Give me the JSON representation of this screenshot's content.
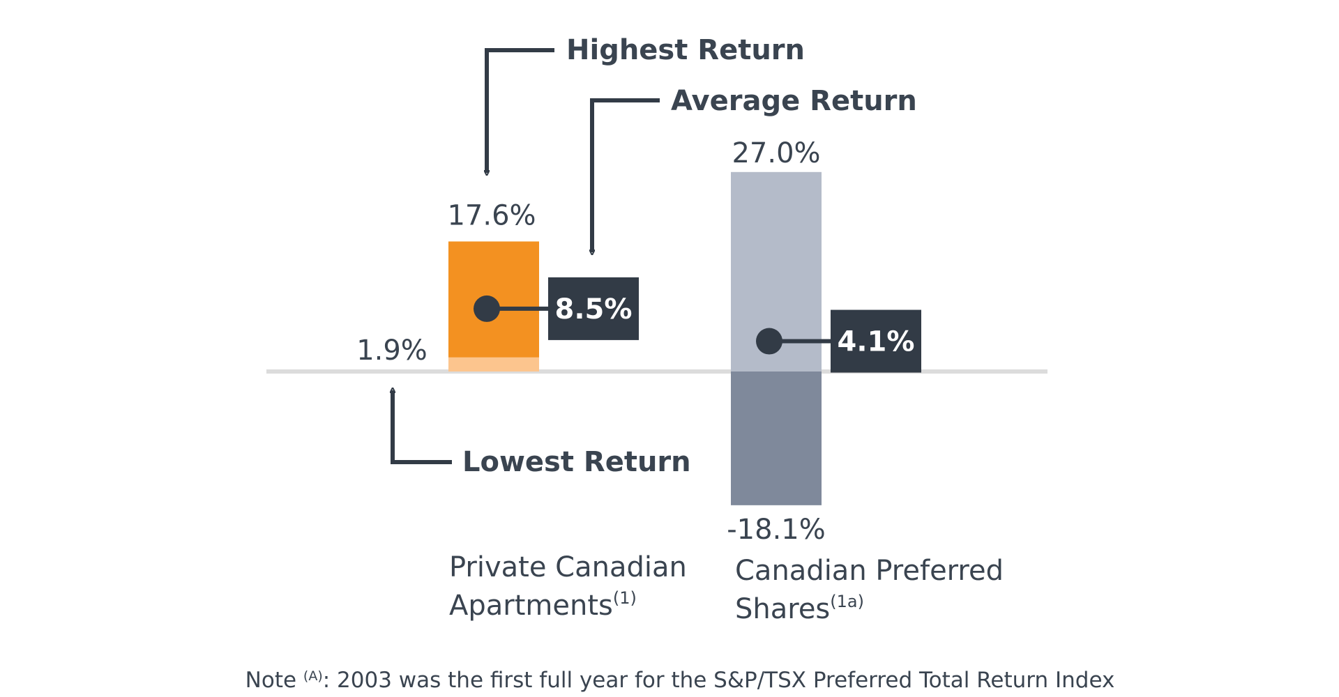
{
  "chart_data": {
    "type": "range-bar",
    "baseline": 0,
    "series_names": {
      "high": "Highest Return",
      "average": "Average Return",
      "low": "Lowest Return"
    },
    "categories": [
      {
        "name": "Private Canadian Apartments",
        "superscript": "(1)",
        "high": 17.6,
        "low": 1.9,
        "average": 8.5,
        "high_label": "17.6%",
        "low_label": "1.9%",
        "average_label": "8.5%",
        "color_main": "#f39121",
        "color_low": "#fcc58e"
      },
      {
        "name": "Canadian Preferred Shares",
        "superscript": "(1a)",
        "high": 27.0,
        "low": -18.1,
        "average": 4.1,
        "high_label": "27.0%",
        "low_label": "-18.1%",
        "average_label": "4.1%",
        "color_main": "#b4bbc9",
        "color_low": "#7f899b"
      }
    ],
    "note": {
      "prefix": "Note ",
      "superscript": "(A)",
      "text": ": 2003 was the first full year for the S&P/TSX Preferred Total Return Index"
    },
    "colors": {
      "text": "#3a4450",
      "marker": "#323b46",
      "baseline": "#dcdcdc",
      "value_box_text": "#ffffff"
    }
  }
}
